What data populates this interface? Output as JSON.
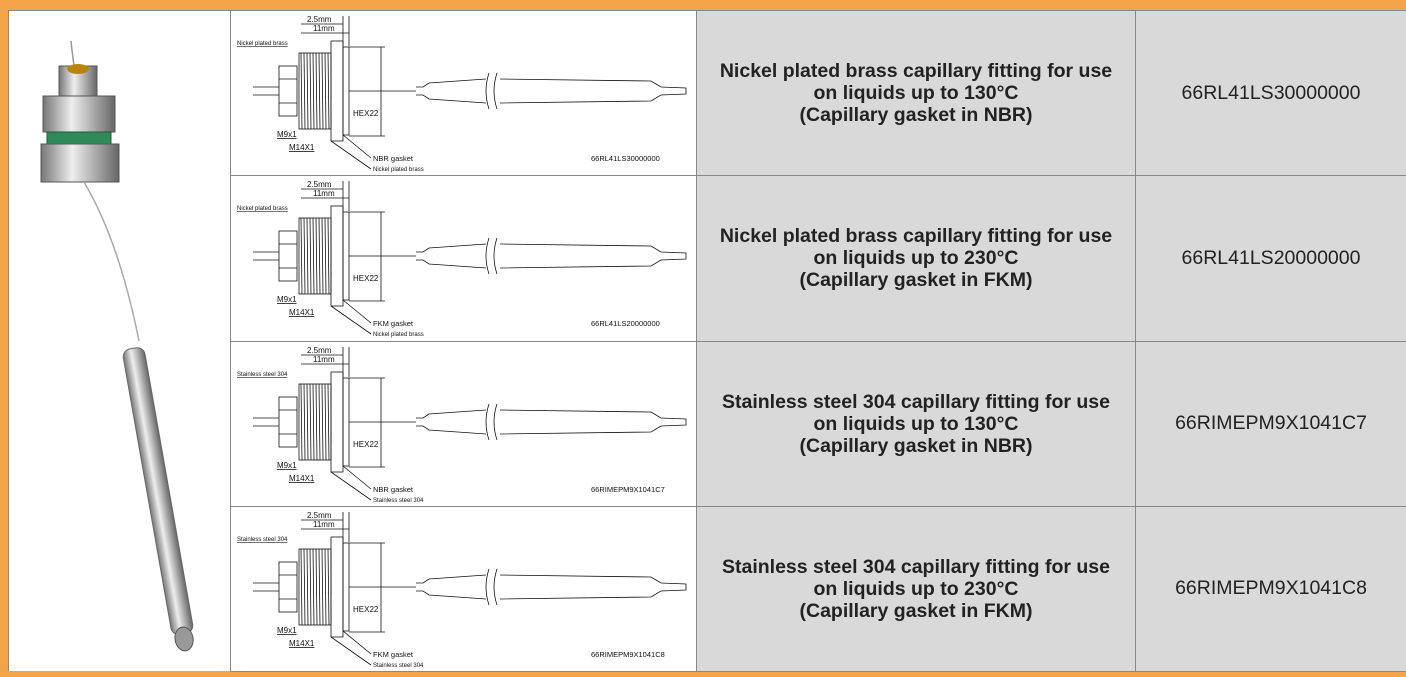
{
  "rows": [
    {
      "drawing": {
        "dim_a": "2.5mm",
        "dim_b": "11mm",
        "body_material": "Nickel plated brass",
        "thread_small": "M9x1",
        "thread_large": "M14X1",
        "hex": "HEX22",
        "gasket": "NBR gasket",
        "nut_material": "Nickel plated brass",
        "code": "66RL41LS30000000"
      },
      "description": [
        "Nickel plated brass capillary fitting for use",
        "on liquids up to 130°C",
        "(Capillary gasket in NBR)"
      ],
      "code": "66RL41LS30000000"
    },
    {
      "drawing": {
        "dim_a": "2.5mm",
        "dim_b": "11mm",
        "body_material": "Nickel plated brass",
        "thread_small": "M9x1",
        "thread_large": "M14X1",
        "hex": "HEX22",
        "gasket": "FKM gasket",
        "nut_material": "Nickel plated brass",
        "code": "66RL41LS20000000"
      },
      "description": [
        "Nickel plated brass capillary fitting for use",
        "on liquids up to 230°C",
        "(Capillary gasket in FKM)"
      ],
      "code": "66RL41LS20000000"
    },
    {
      "drawing": {
        "dim_a": "2.5mm",
        "dim_b": "11mm",
        "body_material": "Stainless steel 304",
        "thread_small": "M9x1",
        "thread_large": "M14X1",
        "hex": "HEX22",
        "gasket": "NBR gasket",
        "nut_material": "Stainless steel 304",
        "code": "66RIMEPM9X1041C7"
      },
      "description": [
        "Stainless steel 304 capillary fitting for use",
        "on liquids up to 130°C",
        "(Capillary gasket in NBR)"
      ],
      "code": "66RIMEPM9X1041C7"
    },
    {
      "drawing": {
        "dim_a": "2.5mm",
        "dim_b": "11mm",
        "body_material": "Stainless steel 304",
        "thread_small": "M9x1",
        "thread_large": "M14X1",
        "hex": "HEX22",
        "gasket": "FKM gasket",
        "nut_material": "Stainless steel 304",
        "code": "66RIMEPM9X1041C8"
      },
      "description": [
        "Stainless steel 304 capillary fitting for use",
        "on liquids up to 230°C",
        "(Capillary gasket in FKM)"
      ],
      "code": "66RIMEPM9X1041C8"
    }
  ]
}
